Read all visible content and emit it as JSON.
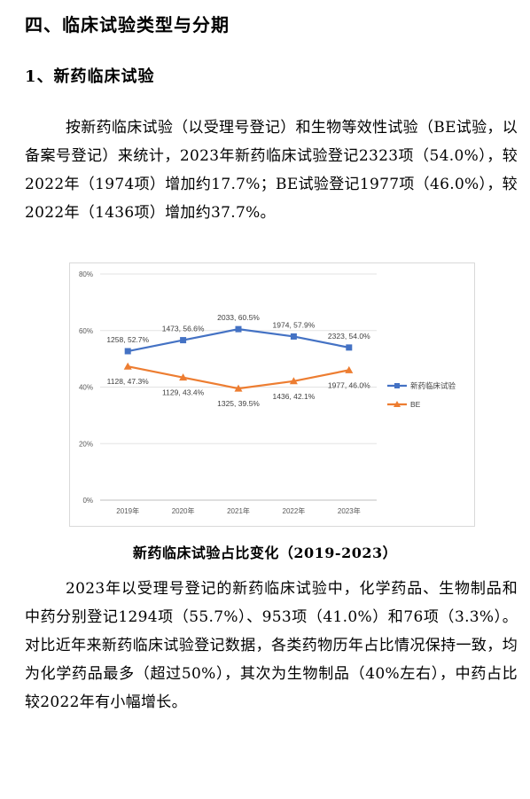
{
  "section_title": "四、临床试验类型与分期",
  "subsection_title": "1、新药临床试验",
  "paragraph1": "按新药临床试验（以受理号登记）和生物等效性试验（BE试验，以备案号登记）来统计，2023年新药临床试验登记2323项（54.0%），较2022年（1974项）增加约17.7%；BE试验登记1977项（46.0%），较2022年（1436项）增加约37.7%。",
  "chart_caption": "新药临床试验占比变化（2019-2023）",
  "paragraph2": "2023年以受理号登记的新药临床试验中，化学药品、生物制品和中药分别登记1294项（55.7%）、953项（41.0%）和76项（3.3%）。对比近年来新药临床试验登记数据，各类药物历年占比情况保持一致，均为化学药品最多（超过50%），其次为生物制品（40%左右），中药占比较2022年有小幅增长。",
  "chart_data": {
    "type": "line",
    "categories": [
      "2019年",
      "2020年",
      "2021年",
      "2022年",
      "2023年"
    ],
    "y_ticks": [
      "0%",
      "20%",
      "40%",
      "60%",
      "80%"
    ],
    "ylim": [
      0,
      80
    ],
    "grid": true,
    "legend_position": "right",
    "series": [
      {
        "name": "新药临床试验",
        "color": "#4472c4",
        "marker": "square",
        "values": [
          52.7,
          56.6,
          60.5,
          57.9,
          54.0
        ],
        "labels": [
          "1258, 52.7%",
          "1473, 56.6%",
          "2033, 60.5%",
          "1974, 57.9%",
          "2323, 54.0%"
        ]
      },
      {
        "name": "BE",
        "color": "#ed7d31",
        "marker": "triangle",
        "values": [
          47.3,
          43.4,
          39.5,
          42.1,
          46.0
        ],
        "labels": [
          "1128, 47.3%",
          "1129, 43.4%",
          "1325, 39.5%",
          "1436, 42.1%",
          "1977, 46.0%"
        ]
      }
    ]
  }
}
